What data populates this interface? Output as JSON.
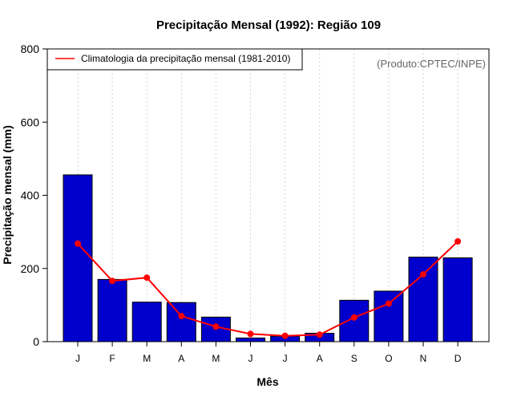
{
  "chart_data": {
    "type": "bar",
    "title": "Precipitação Mensal (1992): Região 109",
    "xlabel": "Mês",
    "ylabel": "Precipitação mensal (mm)",
    "ylim": [
      0,
      800
    ],
    "yticks": [
      0,
      200,
      400,
      600,
      800
    ],
    "categories": [
      "J",
      "F",
      "M",
      "A",
      "M",
      "J",
      "J",
      "A",
      "S",
      "O",
      "N",
      "D"
    ],
    "series": [
      {
        "name": "Precipitação mensal (1992)",
        "kind": "bar",
        "color": "#0000cc",
        "values": [
          456,
          170,
          108,
          107,
          67,
          10,
          15,
          23,
          113,
          138,
          231,
          229
        ]
      },
      {
        "name": "Climatologia da precipitação mensal (1981-2010)",
        "kind": "line",
        "color": "#ff0000",
        "values": [
          268,
          166,
          175,
          70,
          41,
          21,
          16,
          19,
          66,
          104,
          184,
          274
        ]
      }
    ],
    "legend": {
      "position": "top-left",
      "entries": [
        "Climatologia da precipitação mensal (1981-2010)"
      ]
    },
    "annotation": "(Produto:CPTEC/INPE)",
    "grid": "vertical-dotted"
  }
}
